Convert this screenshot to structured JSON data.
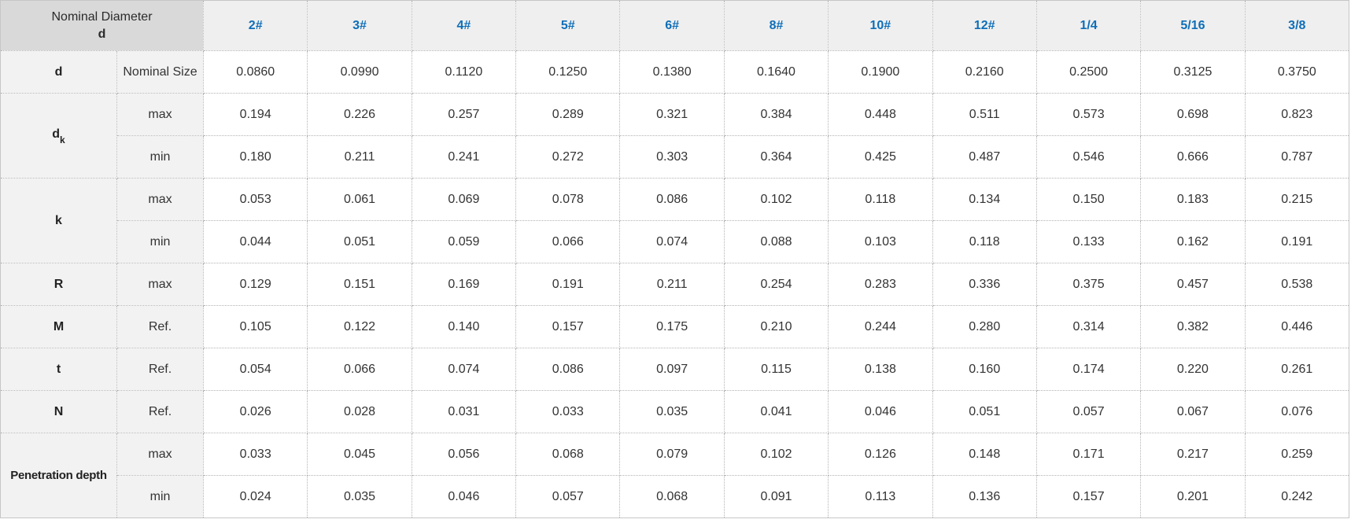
{
  "colors": {
    "header_text_blue": "#0e6eb8",
    "corner_bg": "#d9d9d9",
    "size_header_bg": "#efefef",
    "label_bg": "#f2f2f2",
    "cell_bg": "#ffffff",
    "body_text": "#333333",
    "border": "#b3b3b3"
  },
  "chart_data": {
    "type": "table",
    "title": "",
    "corner_header": {
      "line1": "Nominal Diameter",
      "line2": "d"
    },
    "columns": [
      "2#",
      "3#",
      "4#",
      "5#",
      "6#",
      "8#",
      "10#",
      "12#",
      "1/4",
      "5/16",
      "3/8"
    ],
    "row_groups": [
      {
        "label": "d",
        "label_sub": "",
        "rows": [
          {
            "sub": "Nominal Size",
            "values": [
              "0.0860",
              "0.0990",
              "0.1120",
              "0.1250",
              "0.1380",
              "0.1640",
              "0.1900",
              "0.2160",
              "0.2500",
              "0.3125",
              "0.3750"
            ]
          }
        ]
      },
      {
        "label": "d",
        "label_sub": "k",
        "rows": [
          {
            "sub": "max",
            "values": [
              "0.194",
              "0.226",
              "0.257",
              "0.289",
              "0.321",
              "0.384",
              "0.448",
              "0.511",
              "0.573",
              "0.698",
              "0.823"
            ]
          },
          {
            "sub": "min",
            "values": [
              "0.180",
              "0.211",
              "0.241",
              "0.272",
              "0.303",
              "0.364",
              "0.425",
              "0.487",
              "0.546",
              "0.666",
              "0.787"
            ]
          }
        ]
      },
      {
        "label": "k",
        "label_sub": "",
        "rows": [
          {
            "sub": "max",
            "values": [
              "0.053",
              "0.061",
              "0.069",
              "0.078",
              "0.086",
              "0.102",
              "0.118",
              "0.134",
              "0.150",
              "0.183",
              "0.215"
            ]
          },
          {
            "sub": "min",
            "values": [
              "0.044",
              "0.051",
              "0.059",
              "0.066",
              "0.074",
              "0.088",
              "0.103",
              "0.118",
              "0.133",
              "0.162",
              "0.191"
            ]
          }
        ]
      },
      {
        "label": "R",
        "label_sub": "",
        "rows": [
          {
            "sub": "max",
            "values": [
              "0.129",
              "0.151",
              "0.169",
              "0.191",
              "0.211",
              "0.254",
              "0.283",
              "0.336",
              "0.375",
              "0.457",
              "0.538"
            ]
          }
        ]
      },
      {
        "label": "M",
        "label_sub": "",
        "rows": [
          {
            "sub": "Ref.",
            "values": [
              "0.105",
              "0.122",
              "0.140",
              "0.157",
              "0.175",
              "0.210",
              "0.244",
              "0.280",
              "0.314",
              "0.382",
              "0.446"
            ]
          }
        ]
      },
      {
        "label": "t",
        "label_sub": "",
        "rows": [
          {
            "sub": "Ref.",
            "values": [
              "0.054",
              "0.066",
              "0.074",
              "0.086",
              "0.097",
              "0.115",
              "0.138",
              "0.160",
              "0.174",
              "0.220",
              "0.261"
            ]
          }
        ]
      },
      {
        "label": "N",
        "label_sub": "",
        "rows": [
          {
            "sub": "Ref.",
            "values": [
              "0.026",
              "0.028",
              "0.031",
              "0.033",
              "0.035",
              "0.041",
              "0.046",
              "0.051",
              "0.057",
              "0.067",
              "0.076"
            ]
          }
        ]
      },
      {
        "label": "Penetration depth",
        "label_sub": "",
        "rows": [
          {
            "sub": "max",
            "values": [
              "0.033",
              "0.045",
              "0.056",
              "0.068",
              "0.079",
              "0.102",
              "0.126",
              "0.148",
              "0.171",
              "0.217",
              "0.259"
            ]
          },
          {
            "sub": "min",
            "values": [
              "0.024",
              "0.035",
              "0.046",
              "0.057",
              "0.068",
              "0.091",
              "0.113",
              "0.136",
              "0.157",
              "0.201",
              "0.242"
            ]
          }
        ]
      }
    ]
  }
}
